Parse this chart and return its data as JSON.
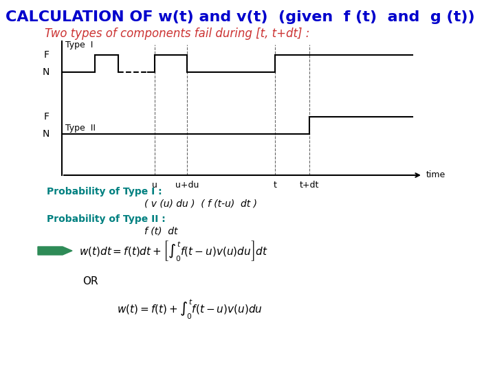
{
  "title": "CALCULATION OF w(t) and v(t)  (given  f (t)  and  g (t))",
  "title_color": "#0000CC",
  "subtitle": "Two types of components fail during [t, t+dt] :",
  "subtitle_color": "#CC3333",
  "bg_color": "#FFFFFF",
  "type1_label": "Type  I",
  "type2_label": "Type  II",
  "F_label": "F",
  "N_label": "N",
  "time_label": "time",
  "x_tick_labels": [
    "u",
    "u+du",
    "t",
    "t+dt"
  ],
  "prob_type1_header": "Probability of Type I :",
  "prob_type1_formula": "( v (u) du )  ( f (t-u)  dt )",
  "prob_type2_header": "Probability of Type II :",
  "prob_type2_formula": "f (t)  dt",
  "header_color": "#008080",
  "arrow_color": "#2E8B57",
  "eq1": "$w(t)dt = f(t)dt + \\left[\\int_0^t f(t-u)v(u)du\\right] dt$",
  "eq2": "$w(t) = f(t) + \\int_0^t f(t-u)v(u)du$",
  "or_label": "OR"
}
